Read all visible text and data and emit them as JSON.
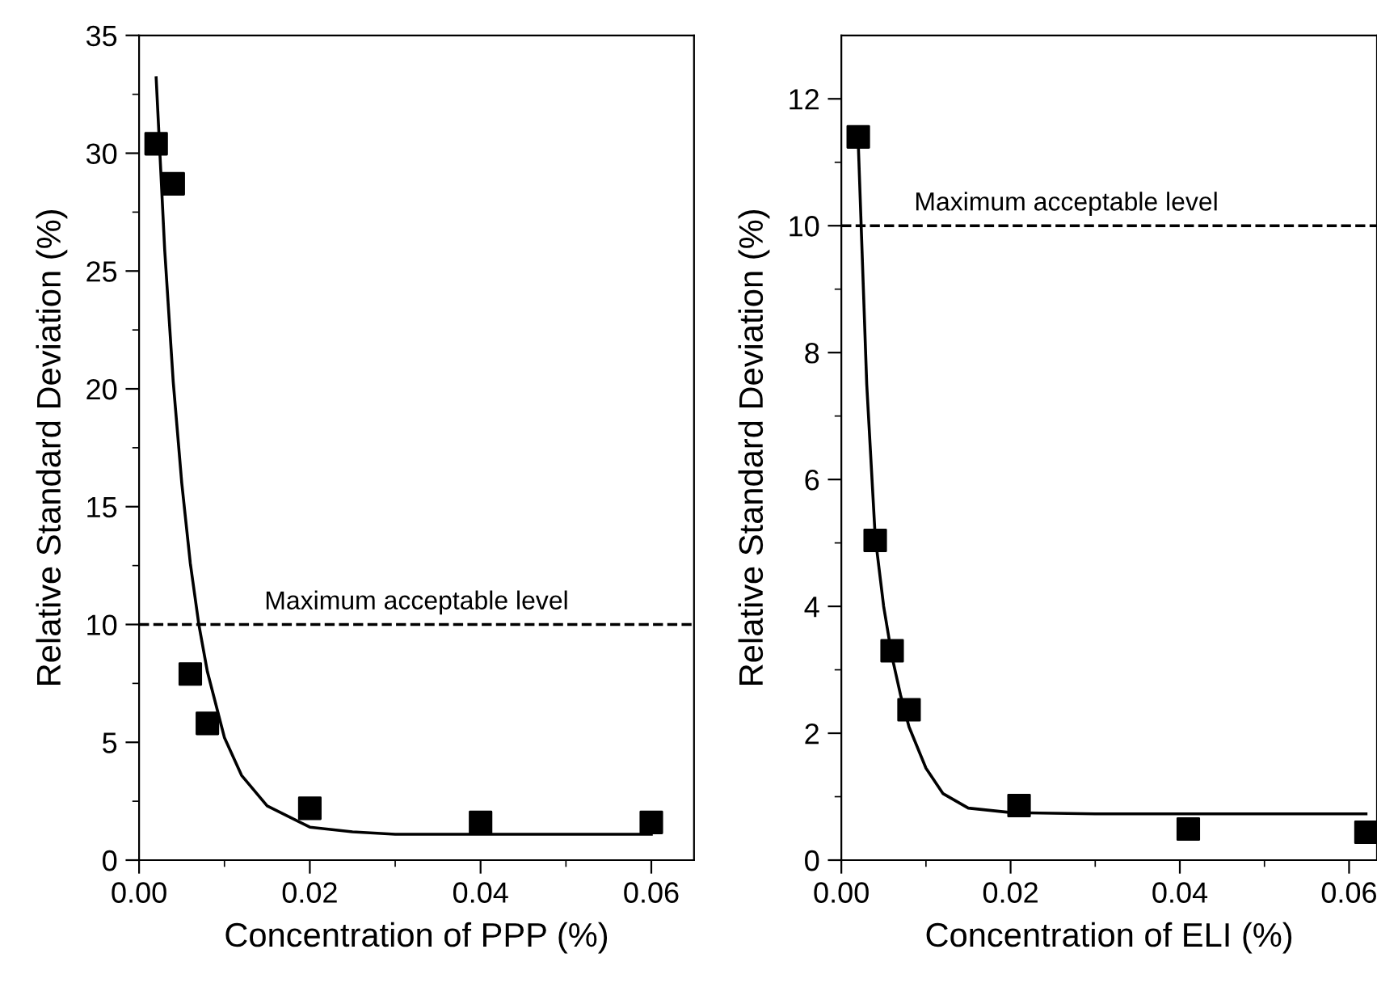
{
  "chart_data": [
    {
      "type": "scatter",
      "xlabel": "Concentration of PPP (%)",
      "ylabel": "Relative Standard Deviation (%)",
      "xlim": [
        0,
        0.065
      ],
      "ylim": [
        0,
        35
      ],
      "grid": false,
      "xticks": [
        {
          "value": 0,
          "label": "0.00"
        },
        {
          "value": 0.01,
          "label": null
        },
        {
          "value": 0.02,
          "label": "0.02"
        },
        {
          "value": 0.03,
          "label": null
        },
        {
          "value": 0.04,
          "label": "0.04"
        },
        {
          "value": 0.05,
          "label": null
        },
        {
          "value": 0.06,
          "label": "0.06"
        }
      ],
      "yticks": [
        0,
        {
          "value": 2.5,
          "label": null
        },
        5,
        {
          "value": 7.5,
          "label": null
        },
        10,
        {
          "value": 12.5,
          "label": null
        },
        15,
        {
          "value": 17.5,
          "label": null
        },
        20,
        {
          "value": 22.5,
          "label": null
        },
        25,
        {
          "value": 27.5,
          "label": null
        },
        30,
        {
          "value": 32.5,
          "label": null
        },
        35
      ],
      "marker": "square",
      "series": [
        {
          "color": "#000000",
          "x": [
            0.002,
            0.004,
            0.006,
            0.008,
            0.02,
            0.04,
            0.06
          ],
          "values": [
            30.4,
            28.7,
            7.9,
            5.8,
            2.2,
            1.6,
            1.6
          ]
        },
        {
          "type": "line",
          "color": "#000000",
          "marker": "none",
          "line_style": "solid",
          "x": [
            0.002,
            0.003,
            0.004,
            0.005,
            0.006,
            0.007,
            0.008,
            0.01,
            0.012,
            0.015,
            0.02,
            0.025,
            0.03,
            0.04,
            0.06
          ],
          "values": [
            33.2,
            25.9,
            20.3,
            16.0,
            12.6,
            10.0,
            8.0,
            5.2,
            3.6,
            2.3,
            1.4,
            1.2,
            1.1,
            1.1,
            1.1
          ]
        }
      ],
      "ref_lines": [
        {
          "axis": "y",
          "value": 10,
          "label": "Maximum acceptable level",
          "color": "#000000",
          "line_style": "dashed"
        }
      ]
    },
    {
      "type": "scatter",
      "xlabel": "Concentration of ELI (%)",
      "ylabel": "Relative Standard Deviation (%)",
      "xlim": [
        0,
        0.0633
      ],
      "ylim": [
        0,
        13
      ],
      "xticks": [
        {
          "value": 0,
          "label": "0.00"
        },
        {
          "value": 0.01,
          "label": null
        },
        {
          "value": 0.02,
          "label": "0.02"
        },
        {
          "value": 0.03,
          "label": null
        },
        {
          "value": 0.04,
          "label": "0.04"
        },
        {
          "value": 0.05,
          "label": null
        },
        {
          "value": 0.06,
          "label": "0.06"
        }
      ],
      "yticks": [
        0,
        {
          "value": 1,
          "label": null
        },
        2,
        {
          "value": 3,
          "label": null
        },
        4,
        {
          "value": 5,
          "label": null
        },
        6,
        {
          "value": 7,
          "label": null
        },
        8,
        {
          "value": 9,
          "label": null
        },
        10,
        {
          "value": 11,
          "label": null
        },
        12
      ],
      "marker": "square",
      "grid": false,
      "series": [
        {
          "color": "#000000",
          "x": [
            0.002,
            0.004,
            0.006,
            0.008,
            0.021,
            0.041,
            0.062
          ],
          "values": [
            11.4,
            5.04,
            3.3,
            2.37,
            0.86,
            0.49,
            0.44
          ]
        },
        {
          "type": "line",
          "color": "#000000",
          "marker": "none",
          "line_style": "solid",
          "x": [
            0.002,
            0.003,
            0.004,
            0.005,
            0.006,
            0.007,
            0.008,
            0.01,
            0.012,
            0.015,
            0.02,
            0.03,
            0.062
          ],
          "values": [
            11.3,
            7.5,
            5.1,
            4.0,
            3.2,
            2.6,
            2.1,
            1.45,
            1.05,
            0.82,
            0.75,
            0.73,
            0.73
          ]
        }
      ],
      "ref_lines": [
        {
          "axis": "y",
          "value": 10,
          "label": "Maximum acceptable level",
          "color": "#000000",
          "line_style": "dashed"
        }
      ]
    }
  ]
}
